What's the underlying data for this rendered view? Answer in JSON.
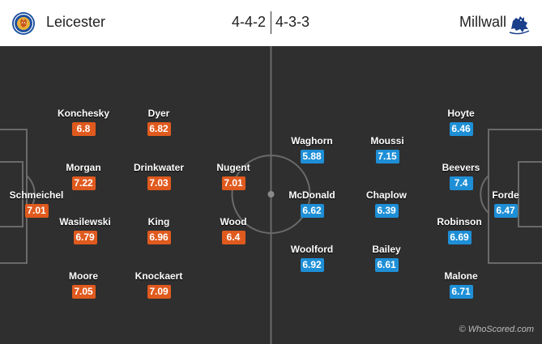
{
  "home": {
    "name": "Leicester",
    "formation": "4-4-2",
    "color": "#e05a1e",
    "players": [
      {
        "name": "Konchesky",
        "rating": "6.8"
      },
      {
        "name": "Dyer",
        "rating": "6.82"
      },
      {
        "name": "Morgan",
        "rating": "7.22"
      },
      {
        "name": "Drinkwater",
        "rating": "7.03"
      },
      {
        "name": "Nugent",
        "rating": "7.01"
      },
      {
        "name": "Schmeichel",
        "rating": "7.01"
      },
      {
        "name": "Wasilewski",
        "rating": "6.79"
      },
      {
        "name": "King",
        "rating": "6.96"
      },
      {
        "name": "Wood",
        "rating": "6.4"
      },
      {
        "name": "Moore",
        "rating": "7.05"
      },
      {
        "name": "Knockaert",
        "rating": "7.09"
      }
    ]
  },
  "away": {
    "name": "Millwall",
    "formation": "4-3-3",
    "color": "#1e8fd6",
    "players": [
      {
        "name": "Hoyte",
        "rating": "6.46"
      },
      {
        "name": "Waghorn",
        "rating": "5.88"
      },
      {
        "name": "Moussi",
        "rating": "7.15"
      },
      {
        "name": "Beevers",
        "rating": "7.4"
      },
      {
        "name": "McDonald",
        "rating": "6.62"
      },
      {
        "name": "Chaplow",
        "rating": "6.39"
      },
      {
        "name": "Forde",
        "rating": "6.47"
      },
      {
        "name": "Robinson",
        "rating": "6.69"
      },
      {
        "name": "Woolford",
        "rating": "6.92"
      },
      {
        "name": "Bailey",
        "rating": "6.61"
      },
      {
        "name": "Malone",
        "rating": "6.71"
      }
    ]
  },
  "credit": "© WhoScored.com",
  "icons": {
    "home_crest": "fox-crest-icon",
    "away_crest": "lion-crest-icon",
    "credit": "copyright-icon"
  }
}
